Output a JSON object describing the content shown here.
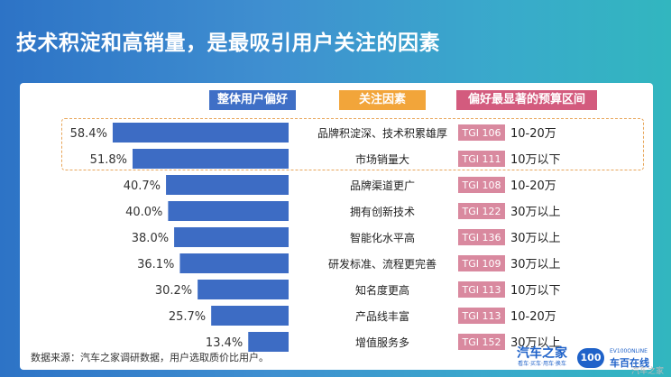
{
  "title": "技术积淀和高销量，是最吸引用户关注的因素",
  "headers": {
    "overall": "整体用户偏好",
    "factors": "关注因素",
    "budget": "偏好最显著的预算区间"
  },
  "chart_data": {
    "type": "bar",
    "orientation": "horizontal",
    "categories": [
      "品牌积淀深、技术积累雄厚",
      "市场销量大",
      "品牌渠道更广",
      "拥有创新技术",
      "智能化水平高",
      "研发标准、流程更完善",
      "知名度更高",
      "产品线丰富",
      "增值服务多"
    ],
    "values": [
      58.4,
      51.8,
      40.7,
      40.0,
      38.0,
      36.1,
      30.2,
      25.7,
      13.4
    ],
    "value_labels": [
      "58.4%",
      "51.8%",
      "40.7%",
      "40.0%",
      "38.0%",
      "36.1%",
      "30.2%",
      "25.7%",
      "13.4%"
    ],
    "tgi": [
      "TGI 106",
      "TGI 111",
      "TGI 108",
      "TGI 122",
      "TGI 136",
      "TGI 109",
      "TGI 113",
      "TGI 113",
      "TGI 152"
    ],
    "budget": [
      "10-20万",
      "10万以下",
      "10-20万",
      "30万以上",
      "30万以上",
      "30万以上",
      "10万以下",
      "10-20万",
      "30万以上"
    ],
    "highlighted_count": 2,
    "colors": {
      "bar": "#3d6cc4",
      "tgi": "#d9899f",
      "highlight_border": "#e8a65a"
    }
  },
  "footer": "数据来源：汽车之家调研数据，用户选取质价比用户。",
  "logos": {
    "autohome_main": "汽车之家",
    "autohome_sub": "看车·买车·用车·换车",
    "badge": "100",
    "ev_en": "EV100ONLINE",
    "ev_cn": "车百在线"
  },
  "watermark": "汽车之家"
}
